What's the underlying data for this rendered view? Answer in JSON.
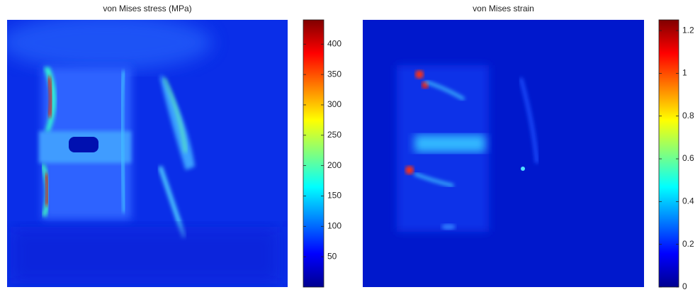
{
  "chart_data": [
    {
      "type": "heatmap",
      "title": "von Mises stress (MPa)",
      "colormap": "jet",
      "clim": [
        0,
        440
      ],
      "cticks": [
        50,
        100,
        150,
        200,
        250,
        300,
        350,
        400
      ]
    },
    {
      "type": "heatmap",
      "title": "von Mises strain",
      "colormap": "jet",
      "clim": [
        0,
        1.25
      ],
      "cticks": [
        0,
        0.2,
        0.4,
        0.6,
        0.8,
        1,
        1.2
      ]
    }
  ]
}
